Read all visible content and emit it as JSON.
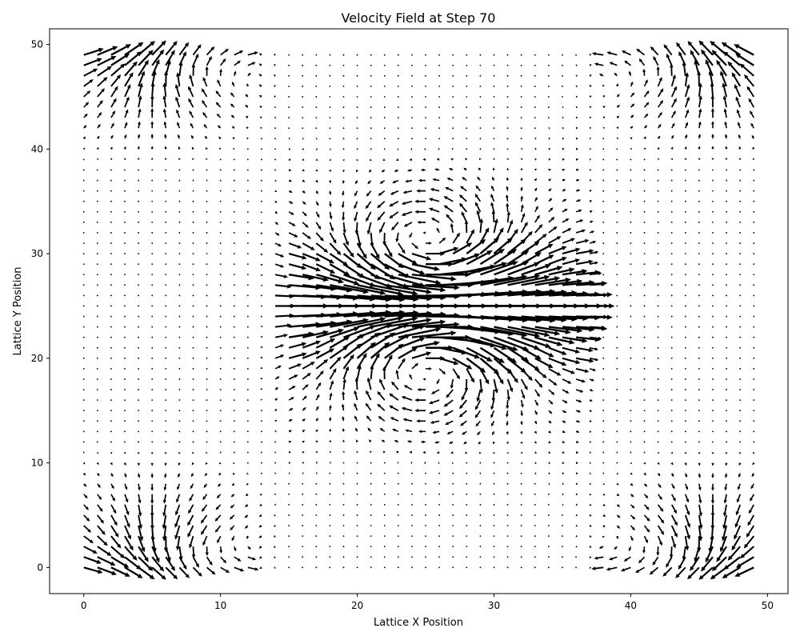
{
  "chart_data": {
    "type": "quiver",
    "title": "Velocity Field at Step 70",
    "xlabel": "Lattice X Position",
    "ylabel": "Lattice Y Position",
    "xlim": [
      -2.5,
      51.5
    ],
    "ylim": [
      -2.5,
      51.5
    ],
    "xticks": [
      0,
      10,
      20,
      30,
      40,
      50
    ],
    "yticks": [
      0,
      10,
      20,
      30,
      40,
      50
    ],
    "grid": false,
    "lattice": {
      "nx": 50,
      "ny": 50
    },
    "arrow_color": "#000000",
    "flow_features": {
      "central_jet": {
        "y": 25,
        "x_range": [
          14,
          37
        ],
        "direction": "+x"
      },
      "vortex_pairs": [
        {
          "x": 25,
          "y": 29,
          "rotation": "counterclockwise"
        },
        {
          "x": 25,
          "y": 21,
          "rotation": "clockwise"
        }
      ],
      "corner_return_flows": [
        {
          "x": 5,
          "y": 47
        },
        {
          "x": 46,
          "y": 47
        },
        {
          "x": 5,
          "y": 3
        },
        {
          "x": 46,
          "y": 3
        }
      ]
    }
  }
}
